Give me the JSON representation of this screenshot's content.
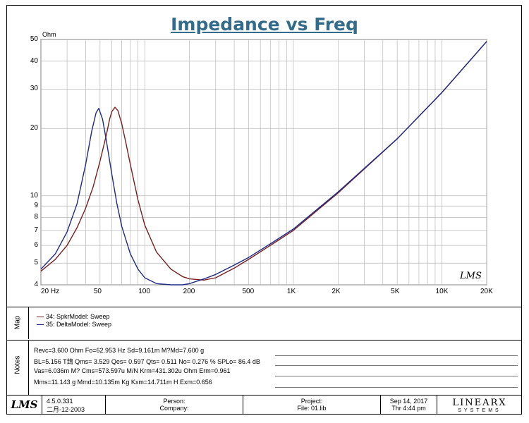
{
  "chart_data": {
    "type": "line",
    "title": "Impedance vs Freq",
    "ylabel": "Ohm",
    "xscale": "log",
    "yscale": "log",
    "xlim": [
      20,
      20000
    ],
    "ylim": [
      4,
      50
    ],
    "grid": true,
    "x_tick_labels": [
      "20 Hz",
      "50",
      "100",
      "200",
      "500",
      "1K",
      "2K",
      "5K",
      "10K",
      "20K"
    ],
    "y_tick_labels": [
      "4",
      "5",
      "6",
      "7",
      "8",
      "9",
      "10",
      "20",
      "30",
      "40",
      "50"
    ],
    "series": [
      {
        "name": "34: SpkrModel: Sweep",
        "color": "#7a1f1f",
        "x": [
          20,
          25,
          30,
          35,
          40,
          45,
          50,
          55,
          58,
          60,
          63,
          66,
          70,
          75,
          80,
          90,
          100,
          120,
          150,
          180,
          200,
          250,
          300,
          400,
          500,
          700,
          1000,
          2000,
          5000,
          10000,
          20000
        ],
        "y": [
          4.6,
          5.2,
          6.0,
          7.2,
          8.8,
          11.0,
          14.3,
          18.6,
          22.0,
          23.8,
          24.9,
          24.0,
          21.0,
          17.0,
          13.8,
          9.6,
          7.4,
          5.6,
          4.7,
          4.35,
          4.25,
          4.2,
          4.3,
          4.75,
          5.2,
          6.0,
          7.0,
          10.3,
          18.0,
          29.0,
          49.0
        ]
      },
      {
        "name": "35: DeltaModel: Sweep",
        "color": "#1f2a86",
        "x": [
          20,
          25,
          30,
          35,
          40,
          44,
          47,
          49,
          52,
          55,
          60,
          65,
          70,
          80,
          90,
          100,
          120,
          150,
          180,
          200,
          250,
          300,
          400,
          500,
          700,
          1000,
          2000,
          5000,
          10000,
          20000
        ],
        "y": [
          4.7,
          5.5,
          6.9,
          9.2,
          13.8,
          19.5,
          23.5,
          24.6,
          22.0,
          17.8,
          12.5,
          9.2,
          7.3,
          5.5,
          4.7,
          4.3,
          4.05,
          4.0,
          4.0,
          4.05,
          4.25,
          4.45,
          4.9,
          5.3,
          6.1,
          7.1,
          10.4,
          18.0,
          29.0,
          49.0
        ]
      }
    ]
  },
  "logo_text": "LMS",
  "side_labels": {
    "map": "Map",
    "notes": "Notes"
  },
  "notes": [
    "Revc=3.600 Ohm  Fo=62.953 Hz  Sd=9.161m M?Md=7.600 g",
    "BL=5.156 T䳏  Qms= 3.529  Qes= 0.597  Qts= 0.511  No= 0.276 %  SPLo= 86.4 dB",
    "Vas=6.036m M? Cms=573.597u M/N  Krm=431.302u Ohm  Erm=0.961",
    "Mms=11.143 g  Mmd=10.135m Kg  Kxm=14.711m H  Exm=0.656"
  ],
  "footer": {
    "version": "4.5.0.331",
    "date_cn": "二月-12-2003",
    "person": "Person:",
    "company": "Company:",
    "project": "Project:",
    "file": "File: 01.lib",
    "date": "Sep 14, 2017",
    "time": "Thr  4:44 pm",
    "brand_main": "LINEARX",
    "brand_sub": "SYSTEMS"
  }
}
